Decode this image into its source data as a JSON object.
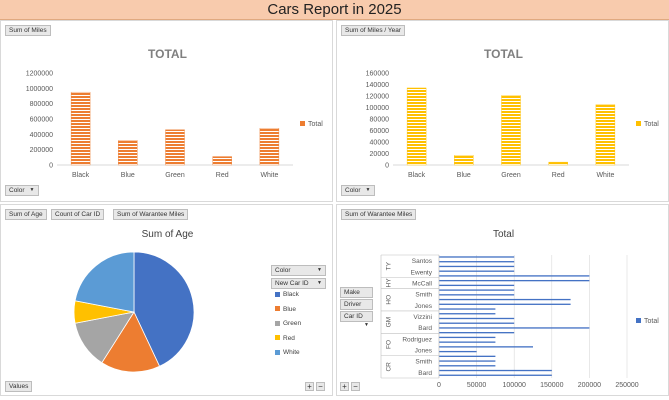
{
  "report_title": "Cars Report in 2025",
  "panels": {
    "miles": {
      "field_button": "Sum of Miles",
      "filter_button": "Color"
    },
    "miles_year": {
      "field_button": "Sum of Miles / Year",
      "filter_button": "Color"
    },
    "age": {
      "field_buttons": [
        "Sum of Age",
        "Count of Car ID",
        "Sum of Warantee Miles"
      ],
      "legend_filters": [
        "Color",
        "New Car ID"
      ],
      "values_button": "Values"
    },
    "warantee": {
      "field_button": "Sum of Warantee Miles",
      "row_filters": [
        "Make",
        "Driver",
        "Car ID"
      ]
    }
  },
  "chart_data": [
    {
      "type": "bar",
      "title": "TOTAL",
      "categories": [
        "Black",
        "Blue",
        "Green",
        "Red",
        "White"
      ],
      "series": [
        {
          "name": "Total",
          "values": [
            950000,
            320000,
            460000,
            110000,
            480000
          ],
          "color": "#ed7d31"
        }
      ],
      "yticks": [
        "0",
        "200000",
        "400000",
        "600000",
        "800000",
        "1000000",
        "1200000"
      ],
      "ylim": [
        0,
        1200000
      ],
      "legend": "right"
    },
    {
      "type": "bar",
      "title": "TOTAL",
      "categories": [
        "Black",
        "Blue",
        "Green",
        "Red",
        "White"
      ],
      "series": [
        {
          "name": "Total",
          "values": [
            134000,
            17000,
            121000,
            5000,
            105000
          ],
          "color": "#ffc000"
        }
      ],
      "yticks": [
        "0",
        "20000",
        "40000",
        "60000",
        "80000",
        "100000",
        "120000",
        "140000",
        "160000"
      ],
      "ylim": [
        0,
        160000
      ],
      "legend": "right"
    },
    {
      "type": "pie",
      "title": "Sum of Age",
      "slices": [
        {
          "name": "Black",
          "value": 43,
          "color": "#4472c4"
        },
        {
          "name": "Blue",
          "value": 16,
          "color": "#ed7d31"
        },
        {
          "name": "Green",
          "value": 13,
          "color": "#a5a5a5"
        },
        {
          "name": "Red",
          "value": 6,
          "color": "#ffc000"
        },
        {
          "name": "White",
          "value": 22,
          "color": "#5b9bd5"
        }
      ],
      "legend": "right"
    },
    {
      "type": "bar",
      "orientation": "horizontal",
      "title": "Total",
      "groups": [
        {
          "label": "TY",
          "drivers": [
            "Santos",
            "Ewenty"
          ]
        },
        {
          "label": "HY",
          "drivers": [
            "McCall"
          ]
        },
        {
          "label": "HO",
          "drivers": [
            "Smith",
            "Jones"
          ]
        },
        {
          "label": "GM",
          "drivers": [
            "Vizzini",
            "Bard"
          ]
        },
        {
          "label": "FO",
          "drivers": [
            "Rodriguez",
            "Jones"
          ]
        },
        {
          "label": "CR",
          "drivers": [
            "Smith",
            "Bard"
          ]
        }
      ],
      "series": [
        {
          "name": "Total",
          "color": "#4472c4",
          "values": [
            100000,
            100000,
            100000,
            100000,
            200000,
            200000,
            100000,
            100000,
            100000,
            175000,
            175000,
            75000,
            75000,
            100000,
            100000,
            200000,
            100000,
            75000,
            75000,
            125000,
            50000,
            75000,
            75000,
            75000,
            150000,
            150000
          ]
        }
      ],
      "xticks": [
        "0",
        "50000",
        "100000",
        "150000",
        "200000",
        "250000"
      ],
      "xlim": [
        0,
        250000
      ],
      "legend": "right"
    }
  ]
}
